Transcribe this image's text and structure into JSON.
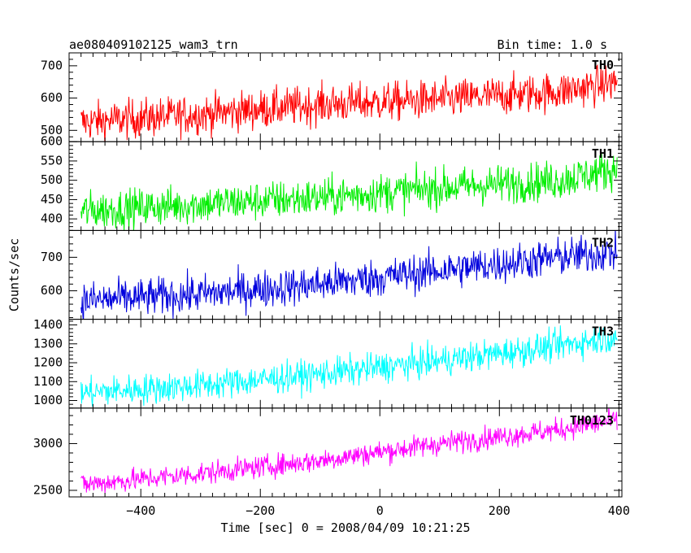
{
  "chart_data": {
    "type": "line",
    "title": "ae080409102125_wam3_trn",
    "subtitle": "Bin time: 1.0 s",
    "xlabel": "Time [sec] 0 = 2008/04/09 10:21:25",
    "ylabel": "Counts/sec",
    "xlim": [
      -520,
      405
    ],
    "x_start": -500,
    "x_end": 397,
    "x_step": 1,
    "x_ticks": [
      -400,
      -200,
      0,
      200,
      400
    ],
    "panels": [
      {
        "name": "TH0",
        "color": "#ff0000",
        "ylim": [
          465,
          740
        ],
        "y_ticks": [
          500,
          600,
          700
        ],
        "trend": [
          [
            -500,
            525
          ],
          [
            -300,
            550
          ],
          [
            -100,
            580
          ],
          [
            100,
            595
          ],
          [
            300,
            620
          ],
          [
            397,
            650
          ]
        ],
        "noise": 30
      },
      {
        "name": "TH1",
        "color": "#00ee00",
        "ylim": [
          370,
          600
        ],
        "y_ticks": [
          400,
          450,
          500,
          550,
          600
        ],
        "trend": [
          [
            -500,
            420
          ],
          [
            -300,
            438
          ],
          [
            -100,
            455
          ],
          [
            100,
            480
          ],
          [
            300,
            500
          ],
          [
            397,
            530
          ]
        ],
        "noise": 25
      },
      {
        "name": "TH2",
        "color": "#0000dd",
        "ylim": [
          515,
          780
        ],
        "y_ticks": [
          600,
          700
        ],
        "trend": [
          [
            -500,
            570
          ],
          [
            -300,
            590
          ],
          [
            -100,
            620
          ],
          [
            100,
            660
          ],
          [
            300,
            700
          ],
          [
            397,
            715
          ]
        ],
        "noise": 28
      },
      {
        "name": "TH3",
        "color": "#00ffff",
        "ylim": [
          960,
          1430
        ],
        "y_ticks": [
          1000,
          1100,
          1200,
          1300,
          1400
        ],
        "trend": [
          [
            -500,
            1040
          ],
          [
            -300,
            1080
          ],
          [
            -100,
            1140
          ],
          [
            100,
            1210
          ],
          [
            300,
            1290
          ],
          [
            397,
            1340
          ]
        ],
        "noise": 40
      },
      {
        "name": "TH0123",
        "color": "#ff00ff",
        "ylim": [
          2430,
          3380
        ],
        "y_ticks": [
          2500,
          3000
        ],
        "trend": [
          [
            -500,
            2560
          ],
          [
            -300,
            2680
          ],
          [
            -100,
            2820
          ],
          [
            100,
            3000
          ],
          [
            300,
            3150
          ],
          [
            397,
            3250
          ]
        ],
        "noise": 60
      }
    ]
  }
}
